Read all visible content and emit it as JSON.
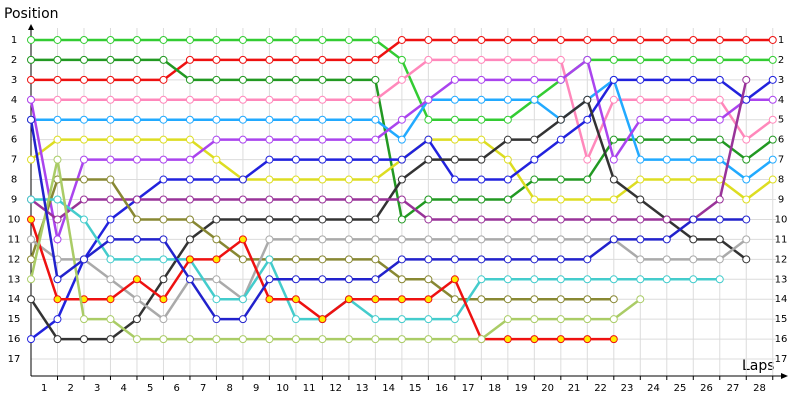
{
  "chart_data": {
    "type": "line",
    "y_label": "Position",
    "x_label": "Laps",
    "x": [
      0,
      1,
      2,
      3,
      4,
      5,
      6,
      7,
      8,
      9,
      10,
      11,
      12,
      13,
      14,
      15,
      16,
      17,
      18,
      19,
      20,
      21,
      22,
      23,
      24,
      25,
      26,
      27,
      28
    ],
    "xlim": [
      0,
      28.5
    ],
    "xticks": [
      1,
      2,
      3,
      4,
      5,
      6,
      7,
      8,
      9,
      10,
      11,
      12,
      13,
      14,
      15,
      16,
      17,
      18,
      19,
      20,
      21,
      22,
      23,
      24,
      25,
      26,
      27,
      28
    ],
    "ylim": [
      0,
      18
    ],
    "y_inverted": true,
    "yticks": [
      1,
      2,
      3,
      4,
      5,
      6,
      7,
      8,
      9,
      10,
      11,
      12,
      13,
      14,
      15,
      16,
      17
    ],
    "grid": true,
    "series": [
      {
        "color": "#33cc33",
        "values": [
          1,
          1,
          1,
          1,
          1,
          1,
          1,
          1,
          1,
          1,
          1,
          1,
          1,
          1,
          2,
          5,
          5,
          5,
          5,
          4,
          3,
          2,
          2,
          2,
          2,
          2,
          2,
          2,
          2
        ]
      },
      {
        "color": "#ee1111",
        "values": [
          3,
          3,
          3,
          3,
          3,
          3,
          2,
          2,
          2,
          2,
          2,
          2,
          2,
          2,
          1,
          1,
          1,
          1,
          1,
          1,
          1,
          1,
          1,
          1,
          1,
          1,
          1,
          1,
          1
        ]
      },
      {
        "color": "#229922",
        "values": [
          2,
          2,
          2,
          2,
          2,
          2,
          3,
          3,
          3,
          3,
          3,
          3,
          3,
          3,
          10,
          9,
          9,
          9,
          9,
          8,
          8,
          8,
          6,
          6,
          6,
          6,
          6,
          7,
          6
        ]
      },
      {
        "color": "#ff88bb",
        "values": [
          4,
          4,
          4,
          4,
          4,
          4,
          4,
          4,
          4,
          4,
          4,
          4,
          4,
          4,
          3,
          2,
          2,
          2,
          2,
          2,
          2,
          7,
          4,
          4,
          4,
          4,
          4,
          6,
          5
        ]
      },
      {
        "color": "#22aaff",
        "values": [
          5,
          5,
          5,
          5,
          5,
          5,
          5,
          5,
          5,
          5,
          5,
          5,
          5,
          5,
          6,
          4,
          4,
          4,
          4,
          4,
          5,
          4,
          3,
          7,
          7,
          7,
          7,
          8,
          7
        ]
      },
      {
        "color": "#dddd22",
        "values": [
          7,
          6,
          6,
          6,
          6,
          6,
          6,
          7,
          8,
          8,
          8,
          8,
          8,
          8,
          7,
          6,
          6,
          6,
          7,
          9,
          9,
          9,
          9,
          8,
          8,
          8,
          8,
          9,
          8
        ]
      },
      {
        "color": "#aa44ee",
        "values": [
          4,
          11,
          7,
          7,
          7,
          7,
          7,
          6,
          6,
          6,
          6,
          6,
          6,
          6,
          5,
          4,
          3,
          3,
          3,
          3,
          3,
          2,
          7,
          5,
          5,
          5,
          5,
          4,
          4
        ]
      },
      {
        "color": "#2222dd",
        "values": [
          16,
          15,
          12,
          10,
          9,
          8,
          8,
          8,
          8,
          7,
          7,
          7,
          7,
          7,
          7,
          6,
          8,
          8,
          8,
          7,
          6,
          5,
          3,
          3,
          3,
          3,
          3,
          4,
          3
        ]
      },
      {
        "color": "#333333",
        "values": [
          14,
          16,
          16,
          16,
          15,
          13,
          11,
          10,
          10,
          10,
          10,
          10,
          10,
          10,
          8,
          7,
          7,
          7,
          6,
          6,
          5,
          4,
          8,
          9,
          10,
          11,
          11,
          12,
          null
        ]
      },
      {
        "color": "#993399",
        "values": [
          9,
          10,
          9,
          9,
          9,
          9,
          9,
          9,
          9,
          9,
          9,
          9,
          9,
          9,
          9,
          10,
          10,
          10,
          10,
          10,
          10,
          10,
          10,
          10,
          10,
          10,
          9,
          3,
          null
        ]
      },
      {
        "color": "#888833",
        "values": [
          12,
          8,
          8,
          8,
          10,
          10,
          10,
          11,
          12,
          12,
          12,
          12,
          12,
          12,
          13,
          13,
          14,
          14,
          14,
          14,
          14,
          14,
          14,
          null,
          null,
          null,
          null,
          null,
          null
        ]
      },
      {
        "color": "#aaaaaa",
        "values": [
          11,
          12,
          12,
          13,
          14,
          15,
          13,
          13,
          14,
          11,
          11,
          11,
          11,
          11,
          11,
          11,
          11,
          11,
          11,
          11,
          11,
          11,
          11,
          12,
          12,
          12,
          12,
          11,
          null
        ]
      },
      {
        "color": "#44cccc",
        "values": [
          9,
          9,
          10,
          12,
          12,
          12,
          12,
          14,
          14,
          12,
          15,
          15,
          14,
          15,
          15,
          15,
          15,
          13,
          13,
          13,
          13,
          13,
          13,
          13,
          13,
          13,
          13,
          null,
          null
        ]
      },
      {
        "color": "#ee1111",
        "marker_color": "#ffee00",
        "values": [
          10,
          14,
          14,
          14,
          13,
          14,
          12,
          12,
          11,
          14,
          14,
          15,
          14,
          14,
          14,
          14,
          13,
          16,
          16,
          16,
          16,
          16,
          16,
          null,
          null,
          null,
          null,
          null,
          null
        ]
      },
      {
        "color": "#aacc66",
        "values": [
          13,
          7,
          15,
          15,
          16,
          16,
          16,
          16,
          16,
          16,
          16,
          16,
          16,
          16,
          16,
          16,
          16,
          16,
          15,
          15,
          15,
          15,
          15,
          14,
          null,
          null,
          null,
          null,
          null
        ]
      },
      {
        "color": "#2222cc",
        "values": [
          5,
          13,
          12,
          11,
          11,
          11,
          13,
          15,
          15,
          13,
          13,
          13,
          13,
          13,
          12,
          12,
          12,
          12,
          12,
          12,
          12,
          12,
          11,
          11,
          11,
          10,
          10,
          10,
          null
        ]
      }
    ]
  }
}
